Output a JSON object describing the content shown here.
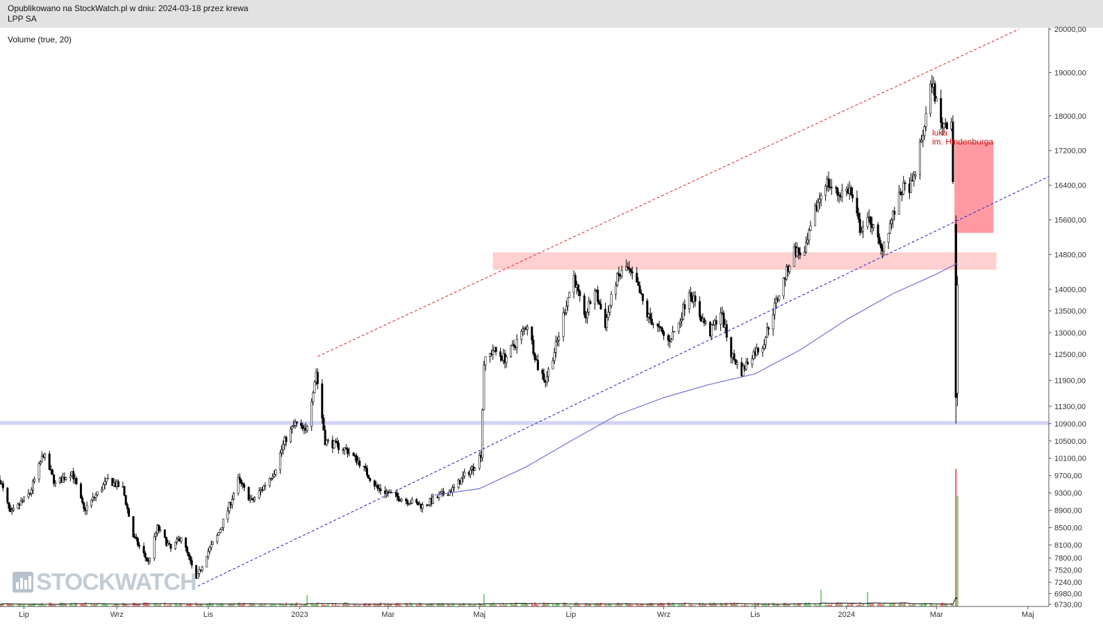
{
  "header": {
    "published_line": "Opublikowano na StockWatch.pl w dniu: 2024-03-18 przez krewa",
    "instrument": "LPP SA"
  },
  "indicator_label": "Volume (true, 20)",
  "logo": {
    "text": "STOCKWATCH",
    "icon": "bar-chart-logo-icon"
  },
  "annotation": {
    "line1": "luka",
    "line2": "im. Hindenburga"
  },
  "colors": {
    "candle": "#000000",
    "resistance_line": "#e03030",
    "support_line": "#2a2ad0",
    "moving_average": "#7070d8",
    "resistance_zone": "#ffd0d0",
    "gap_zone": "#ff9aa2",
    "support_zone": "#d4d4f6",
    "volume_up": "#7fcf7f",
    "volume_down": "#f07878",
    "volume_avg": "#000000"
  },
  "chart_data": {
    "type": "candlestick",
    "title": "LPP SA",
    "y_axis": {
      "min": 6730,
      "max": 20000,
      "position": "right",
      "ticks": [
        "20000,00",
        "19000,00",
        "18000,00",
        "17200,00",
        "16400,00",
        "15600,00",
        "14800,00",
        "14000,00",
        "13500,00",
        "13000,00",
        "12500,00",
        "11900,00",
        "11300,00",
        "10900,00",
        "10500,00",
        "10100,00",
        "9700,00",
        "9300,00",
        "8900,00",
        "8500,00",
        "8100,00",
        "7800,00",
        "7520,00",
        "7240,00",
        "6980,00",
        "6730,00"
      ]
    },
    "x_axis": {
      "start": "2022-06-15",
      "end": "2024-05-15",
      "labels": [
        {
          "date": "2022-07-01",
          "label": "Lip"
        },
        {
          "date": "2022-09-01",
          "label": "Wrz"
        },
        {
          "date": "2022-11-01",
          "label": "Lis"
        },
        {
          "date": "2023-01-01",
          "label": "2023"
        },
        {
          "date": "2023-03-01",
          "label": "Mar"
        },
        {
          "date": "2023-05-01",
          "label": "Maj"
        },
        {
          "date": "2023-07-01",
          "label": "Lip"
        },
        {
          "date": "2023-09-01",
          "label": "Wrz"
        },
        {
          "date": "2023-11-01",
          "label": "Lis"
        },
        {
          "date": "2024-01-01",
          "label": "2024"
        },
        {
          "date": "2024-03-01",
          "label": "Mar"
        },
        {
          "date": "2024-05-01",
          "label": "Maj"
        }
      ]
    },
    "price_path": [
      [
        "2022-06-15",
        9600
      ],
      [
        "2022-06-22",
        8800
      ],
      [
        "2022-07-05",
        9300
      ],
      [
        "2022-07-14",
        10200
      ],
      [
        "2022-07-22",
        9500
      ],
      [
        "2022-08-02",
        9800
      ],
      [
        "2022-08-10",
        8900
      ],
      [
        "2022-08-17",
        9200
      ],
      [
        "2022-08-26",
        9600
      ],
      [
        "2022-09-05",
        9400
      ],
      [
        "2022-09-12",
        8300
      ],
      [
        "2022-09-22",
        7700
      ],
      [
        "2022-09-28",
        8500
      ],
      [
        "2022-10-07",
        8000
      ],
      [
        "2022-10-14",
        8300
      ],
      [
        "2022-10-24",
        7300
      ],
      [
        "2022-10-31",
        7900
      ],
      [
        "2022-11-07",
        8300
      ],
      [
        "2022-11-14",
        8900
      ],
      [
        "2022-11-21",
        9600
      ],
      [
        "2022-11-30",
        9100
      ],
      [
        "2022-12-07",
        9400
      ],
      [
        "2022-12-15",
        9800
      ],
      [
        "2022-12-22",
        10500
      ],
      [
        "2022-12-29",
        10900
      ],
      [
        "2023-01-05",
        10700
      ],
      [
        "2023-01-12",
        12100
      ],
      [
        "2023-01-18",
        10500
      ],
      [
        "2023-02-01",
        10300
      ],
      [
        "2023-02-10",
        10000
      ],
      [
        "2023-02-22",
        9400
      ],
      [
        "2023-03-08",
        9200
      ],
      [
        "2023-03-16",
        9100
      ],
      [
        "2023-03-24",
        9000
      ],
      [
        "2023-04-03",
        9200
      ],
      [
        "2023-04-14",
        9400
      ],
      [
        "2023-04-21",
        9700
      ],
      [
        "2023-04-27",
        9900
      ],
      [
        "2023-05-02",
        10200
      ],
      [
        "2023-05-04",
        12300
      ],
      [
        "2023-05-10",
        12600
      ],
      [
        "2023-05-18",
        12400
      ],
      [
        "2023-05-26",
        12800
      ],
      [
        "2023-06-02",
        13200
      ],
      [
        "2023-06-09",
        12200
      ],
      [
        "2023-06-14",
        11900
      ],
      [
        "2023-06-22",
        12800
      ],
      [
        "2023-06-28",
        13700
      ],
      [
        "2023-07-03",
        14300
      ],
      [
        "2023-07-10",
        13300
      ],
      [
        "2023-07-17",
        14000
      ],
      [
        "2023-07-24",
        13200
      ],
      [
        "2023-07-31",
        14200
      ],
      [
        "2023-08-07",
        14500
      ],
      [
        "2023-08-14",
        14100
      ],
      [
        "2023-08-21",
        13400
      ],
      [
        "2023-08-28",
        13100
      ],
      [
        "2023-09-04",
        12800
      ],
      [
        "2023-09-11",
        13200
      ],
      [
        "2023-09-18",
        14000
      ],
      [
        "2023-09-25",
        13400
      ],
      [
        "2023-10-02",
        13000
      ],
      [
        "2023-10-09",
        13500
      ],
      [
        "2023-10-16",
        12500
      ],
      [
        "2023-10-23",
        12100
      ],
      [
        "2023-10-30",
        12500
      ],
      [
        "2023-11-06",
        12700
      ],
      [
        "2023-11-13",
        13500
      ],
      [
        "2023-11-20",
        14200
      ],
      [
        "2023-11-27",
        14900
      ],
      [
        "2023-12-04",
        14800
      ],
      [
        "2023-12-11",
        15800
      ],
      [
        "2023-12-18",
        16500
      ],
      [
        "2023-12-26",
        16200
      ],
      [
        "2024-01-03",
        16300
      ],
      [
        "2024-01-10",
        15400
      ],
      [
        "2024-01-17",
        15600
      ],
      [
        "2024-01-24",
        14900
      ],
      [
        "2024-01-31",
        15600
      ],
      [
        "2024-02-07",
        16300
      ],
      [
        "2024-02-14",
        16400
      ],
      [
        "2024-02-21",
        17600
      ],
      [
        "2024-02-27",
        18800
      ],
      [
        "2024-03-04",
        17800
      ],
      [
        "2024-03-11",
        17900
      ],
      [
        "2024-03-13",
        15200
      ],
      [
        "2024-03-14",
        11300
      ],
      [
        "2024-03-15",
        14200
      ]
    ],
    "notable_candles": [
      {
        "date": "2024-03-14",
        "open": 15500,
        "high": 15700,
        "low": 10900,
        "close": 11500
      },
      {
        "date": "2024-03-15",
        "open": 11600,
        "high": 14300,
        "low": 11300,
        "close": 14100
      }
    ],
    "moving_average": [
      [
        "2023-04-01",
        9250
      ],
      [
        "2023-05-01",
        9400
      ],
      [
        "2023-06-01",
        9900
      ],
      [
        "2023-07-01",
        10500
      ],
      [
        "2023-08-01",
        11100
      ],
      [
        "2023-09-01",
        11500
      ],
      [
        "2023-10-01",
        11800
      ],
      [
        "2023-11-01",
        12050
      ],
      [
        "2023-12-01",
        12600
      ],
      [
        "2024-01-01",
        13300
      ],
      [
        "2024-02-01",
        13900
      ],
      [
        "2024-03-01",
        14350
      ],
      [
        "2024-03-15",
        14600
      ]
    ],
    "trend_lines": [
      {
        "name": "resistance-trend",
        "style": "dashed",
        "color": "#e03030",
        "from": [
          "2023-01-13",
          12450
        ],
        "to": [
          "2024-04-25",
          20000
        ]
      },
      {
        "name": "support-trend",
        "style": "dashed",
        "color": "#2a2ad0",
        "from": [
          "2022-10-25",
          7150
        ],
        "to": [
          "2024-05-15",
          16600
        ]
      }
    ],
    "zones": [
      {
        "name": "resistance-zone",
        "from": "2023-05-10",
        "to": "2024-04-10",
        "low": 14450,
        "high": 14850,
        "color": "#ffd0d0"
      },
      {
        "name": "hindenburg-gap-zone",
        "from": "2024-03-13",
        "to": "2024-04-08",
        "low": 15300,
        "high": 17400,
        "color": "#ff9aa2"
      },
      {
        "name": "support-zone",
        "from": "2022-06-15",
        "to": "2024-05-15",
        "low": 10870,
        "high": 10960,
        "color": "#d4d4f6"
      }
    ],
    "volume": {
      "label": "Volume (true, 20)",
      "typical_range": [
        0.04,
        0.2
      ],
      "spikes": [
        {
          "date": "2023-01-06",
          "rel": 0.55,
          "dir": "down"
        },
        {
          "date": "2023-05-04",
          "rel": 0.6,
          "dir": "up"
        },
        {
          "date": "2023-12-15",
          "rel": 0.8,
          "dir": "down"
        },
        {
          "date": "2024-01-15",
          "rel": 0.7,
          "dir": "up"
        },
        {
          "date": "2024-03-14",
          "rel": 6.6,
          "dir": "down"
        },
        {
          "date": "2024-03-15",
          "rel": 5.3,
          "dir": "up"
        }
      ]
    }
  }
}
